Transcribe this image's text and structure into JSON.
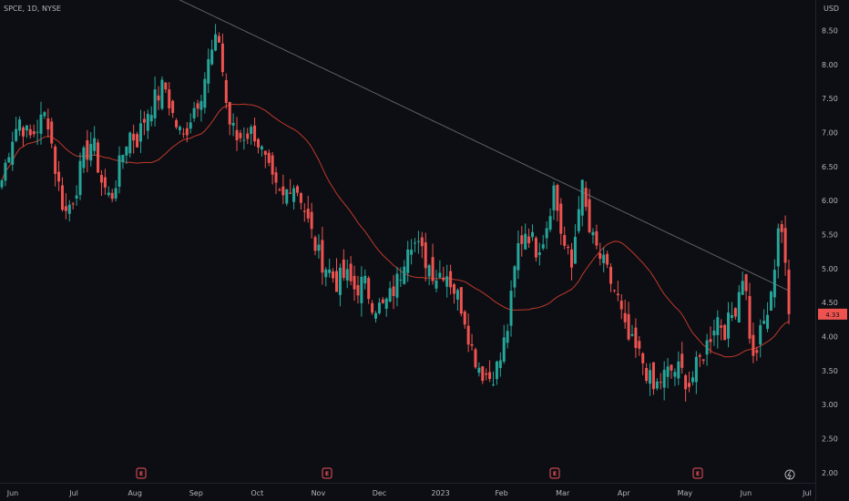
{
  "symbol_line": "SPCE, 1D, NYSE",
  "currency": "USD",
  "colors": {
    "background": "#0d0e13",
    "up": "#26a69a",
    "down": "#ef5350",
    "ma_fast": "#c0392b",
    "ma_slow": "#5d606b",
    "text": "#b2b5be",
    "last_price_badge": "#ef5350"
  },
  "chart_data": {
    "type": "candlestick",
    "title": "",
    "timeframe": "1D",
    "exchange": "NYSE",
    "ylim": [
      1.85,
      8.95
    ],
    "y_ticks": [
      2.0,
      2.5,
      3.0,
      3.5,
      4.0,
      4.5,
      5.0,
      5.5,
      6.0,
      6.5,
      7.0,
      7.5,
      8.0,
      8.5
    ],
    "x_labels": [
      "Jun",
      "Jul",
      "Aug",
      "Sep",
      "Oct",
      "Nov",
      "Dec",
      "2023",
      "Feb",
      "Mar",
      "Apr",
      "May",
      "Jun",
      "Jul"
    ],
    "last_price": "4.33",
    "earnings_markers": [
      "Aug 2022",
      "Nov 2022",
      "Feb 2023",
      "May 2023"
    ],
    "close_series": [
      6.3,
      6.9,
      7.2,
      6.9,
      7.1,
      7.3,
      6.4,
      5.8,
      6.1,
      6.6,
      6.9,
      6.3,
      6.0,
      6.5,
      7.0,
      6.9,
      7.3,
      7.5,
      7.7,
      7.2,
      6.9,
      7.3,
      7.6,
      8.1,
      8.4,
      7.2,
      6.9,
      7.0,
      7.0,
      6.6,
      6.2,
      6.0,
      6.3,
      6.1,
      5.6,
      5.2,
      5.0,
      4.8,
      4.9,
      4.7,
      4.8,
      4.5,
      4.4,
      4.6,
      4.9,
      5.5,
      5.3,
      5.1,
      4.9,
      5.0,
      4.7,
      4.4,
      3.8,
      3.5,
      3.4,
      3.6,
      4.2,
      5.3,
      5.6,
      5.3,
      5.5,
      6.2,
      5.4,
      5.0,
      6.3,
      5.5,
      5.2,
      4.9,
      4.6,
      4.0,
      3.8,
      3.6,
      3.2,
      3.4,
      3.5,
      3.5,
      3.3,
      3.6,
      3.9,
      4.3,
      4.1,
      4.4,
      5.0,
      3.6,
      4.1,
      4.5,
      5.9,
      4.33
    ],
    "series": [
      {
        "name": "",
        "values": []
      },
      {
        "name": "",
        "values": []
      }
    ]
  }
}
